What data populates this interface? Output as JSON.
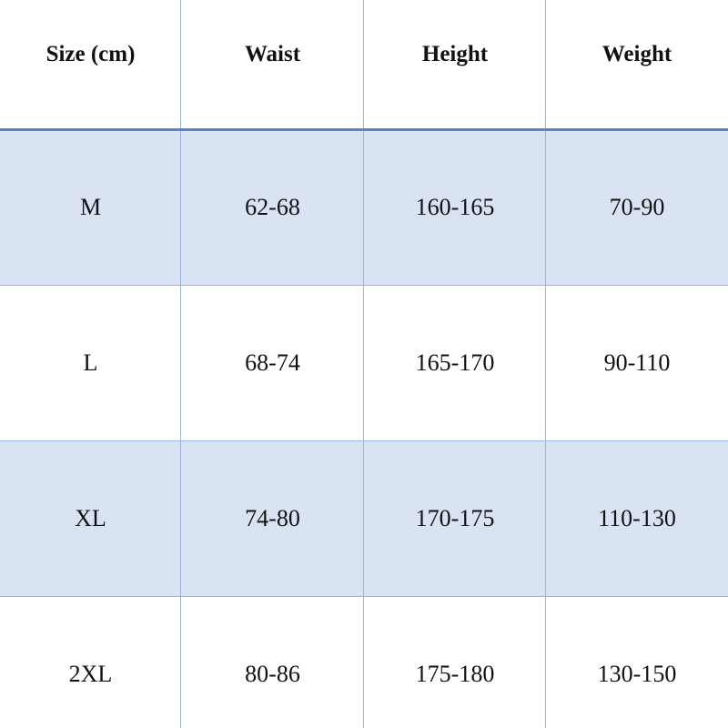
{
  "table": {
    "header": [
      "Size (cm)",
      "Waist",
      "Height",
      "Weight"
    ],
    "rows": [
      [
        "M",
        "62-68",
        "160-165",
        "70-90"
      ],
      [
        "L",
        "68-74",
        "165-170",
        "90-110"
      ],
      [
        "XL",
        "74-80",
        "170-175",
        "110-130"
      ],
      [
        "2XL",
        "80-86",
        "175-180",
        "130-150"
      ]
    ]
  }
}
